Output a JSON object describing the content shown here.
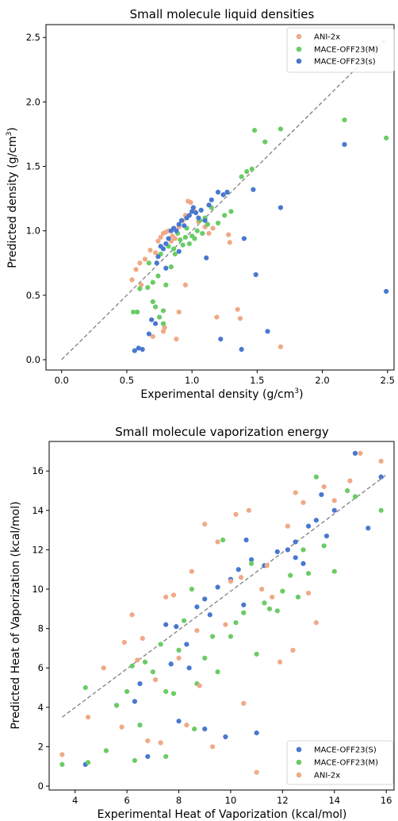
{
  "colors": {
    "ani": "#f0a986",
    "mace_m": "#6acc65",
    "mace_s": "#4878d0",
    "diag": "#808080"
  },
  "chart_data": [
    {
      "type": "scatter",
      "title": "Small molecule liquid densities",
      "xlabel": "Experimental density (g/cm",
      "xlabel_sup": "3",
      "xlabel_end": ")",
      "ylabel": "Predicted density (g/cm",
      "ylabel_sup": "3",
      "ylabel_end": ")",
      "xlim": [
        -0.12,
        2.55
      ],
      "ylim": [
        -0.08,
        2.6
      ],
      "xticks": [
        0.0,
        0.5,
        1.0,
        1.5,
        2.0,
        2.5
      ],
      "yticks": [
        0.0,
        0.5,
        1.0,
        1.5,
        2.0,
        2.5
      ],
      "xtick_labels": [
        "0.0",
        "0.5",
        "1.0",
        "1.5",
        "2.0",
        "2.5"
      ],
      "ytick_labels": [
        "0.0",
        "0.5",
        "1.0",
        "1.5",
        "2.0",
        "2.5"
      ],
      "diagonal": [
        [
          0.0,
          0.0
        ],
        [
          2.5,
          2.5
        ]
      ],
      "legend_position": "top-right",
      "series": [
        {
          "name": "ANI-2x",
          "color_key": "ani",
          "points": [
            [
              0.54,
              0.62
            ],
            [
              0.57,
              0.7
            ],
            [
              0.6,
              0.75
            ],
            [
              0.61,
              0.58
            ],
            [
              0.64,
              0.78
            ],
            [
              0.68,
              0.85
            ],
            [
              0.72,
              0.83
            ],
            [
              0.74,
              0.92
            ],
            [
              0.76,
              0.95
            ],
            [
              0.78,
              0.98
            ],
            [
              0.8,
              0.99
            ],
            [
              0.82,
              1.0
            ],
            [
              0.84,
              0.92
            ],
            [
              0.85,
              0.96
            ],
            [
              0.87,
              0.94
            ],
            [
              0.9,
              1.03
            ],
            [
              0.93,
              1.08
            ],
            [
              0.95,
              1.12
            ],
            [
              0.97,
              1.23
            ],
            [
              0.99,
              1.22
            ],
            [
              1.02,
              1.15
            ],
            [
              1.05,
              1.07
            ],
            [
              1.1,
              1.03
            ],
            [
              1.16,
              1.02
            ],
            [
              1.28,
              0.97
            ],
            [
              0.7,
              0.18
            ],
            [
              0.78,
              0.22
            ],
            [
              0.79,
              0.25
            ],
            [
              0.88,
              0.16
            ],
            [
              0.9,
              0.37
            ],
            [
              0.95,
              0.58
            ],
            [
              1.13,
              0.98
            ],
            [
              1.19,
              0.33
            ],
            [
              1.35,
              0.39
            ],
            [
              1.37,
              0.32
            ],
            [
              1.68,
              0.1
            ],
            [
              1.29,
              0.91
            ]
          ]
        },
        {
          "name": "MACE-OFF23(M)",
          "color_key": "mace_m",
          "points": [
            [
              0.55,
              0.37
            ],
            [
              0.58,
              0.37
            ],
            [
              0.6,
              0.55
            ],
            [
              0.66,
              0.56
            ],
            [
              0.67,
              0.75
            ],
            [
              0.7,
              0.6
            ],
            [
              0.7,
              0.45
            ],
            [
              0.72,
              0.41
            ],
            [
              0.74,
              0.65
            ],
            [
              0.75,
              0.33
            ],
            [
              0.76,
              0.82
            ],
            [
              0.78,
              0.38
            ],
            [
              0.78,
              0.28
            ],
            [
              0.8,
              0.58
            ],
            [
              0.82,
              0.88
            ],
            [
              0.84,
              0.72
            ],
            [
              0.86,
              0.86
            ],
            [
              0.87,
              0.82
            ],
            [
              0.89,
              0.98
            ],
            [
              0.91,
              0.93
            ],
            [
              0.93,
              0.89
            ],
            [
              0.95,
              0.95
            ],
            [
              0.98,
              0.9
            ],
            [
              1.0,
              0.96
            ],
            [
              1.02,
              0.94
            ],
            [
              1.04,
              1.0
            ],
            [
              1.06,
              1.08
            ],
            [
              1.1,
              1.1
            ],
            [
              1.12,
              1.05
            ],
            [
              1.15,
              1.18
            ],
            [
              1.2,
              1.06
            ],
            [
              1.25,
              1.12
            ],
            [
              1.3,
              1.15
            ],
            [
              1.38,
              1.42
            ],
            [
              1.42,
              1.46
            ],
            [
              1.46,
              1.48
            ],
            [
              1.48,
              1.78
            ],
            [
              1.56,
              1.69
            ],
            [
              1.68,
              1.79
            ],
            [
              2.17,
              1.86
            ],
            [
              2.49,
              1.72
            ],
            [
              0.96,
              1.02
            ],
            [
              1.08,
              0.98
            ]
          ]
        },
        {
          "name": "MACE-OFF23(s)",
          "color_key": "mace_s",
          "points": [
            [
              0.56,
              0.07
            ],
            [
              0.59,
              0.09
            ],
            [
              0.62,
              0.08
            ],
            [
              0.67,
              0.2
            ],
            [
              0.69,
              0.31
            ],
            [
              0.72,
              0.28
            ],
            [
              0.74,
              0.8
            ],
            [
              0.76,
              0.88
            ],
            [
              0.78,
              0.86
            ],
            [
              0.8,
              0.9
            ],
            [
              0.82,
              0.94
            ],
            [
              0.84,
              1.0
            ],
            [
              0.86,
              1.02
            ],
            [
              0.88,
              1.0
            ],
            [
              0.9,
              1.05
            ],
            [
              0.92,
              1.08
            ],
            [
              0.94,
              1.04
            ],
            [
              0.96,
              1.1
            ],
            [
              0.98,
              1.12
            ],
            [
              1.0,
              1.15
            ],
            [
              1.01,
              1.18
            ],
            [
              1.03,
              1.14
            ],
            [
              1.05,
              1.1
            ],
            [
              1.07,
              1.16
            ],
            [
              1.1,
              1.08
            ],
            [
              1.13,
              1.2
            ],
            [
              1.15,
              1.24
            ],
            [
              1.2,
              1.3
            ],
            [
              1.24,
              1.28
            ],
            [
              1.27,
              1.3
            ],
            [
              1.22,
              0.16
            ],
            [
              1.38,
              0.08
            ],
            [
              1.4,
              0.94
            ],
            [
              1.47,
              1.32
            ],
            [
              1.49,
              0.66
            ],
            [
              1.58,
              0.22
            ],
            [
              1.68,
              1.18
            ],
            [
              2.17,
              1.67
            ],
            [
              2.49,
              0.53
            ],
            [
              0.8,
              0.71
            ],
            [
              0.9,
              0.84
            ],
            [
              0.73,
              0.75
            ],
            [
              1.11,
              0.79
            ]
          ]
        }
      ]
    },
    {
      "type": "scatter",
      "title": "Small molecule vaporization energy",
      "xlabel": "Experimental Heat of Vaporization (kcal/mol)",
      "ylabel": "Predicted Heat of Vaporization (kcal/mol)",
      "xlim": [
        3.0,
        16.3
      ],
      "ylim": [
        -0.2,
        17.5
      ],
      "xticks": [
        4,
        6,
        8,
        10,
        12,
        14,
        16
      ],
      "yticks": [
        0,
        2,
        4,
        6,
        8,
        10,
        12,
        14,
        16
      ],
      "xtick_labels": [
        "4",
        "6",
        "8",
        "10",
        "12",
        "14",
        "16"
      ],
      "ytick_labels": [
        "0",
        "2",
        "4",
        "6",
        "8",
        "10",
        "12",
        "14",
        "16"
      ],
      "diagonal": [
        [
          3.5,
          3.5
        ],
        [
          16.0,
          15.8
        ]
      ],
      "legend_position": "bottom-right",
      "series": [
        {
          "name": "MACE-OFF23(S)",
          "color_key": "mace_s",
          "points": [
            [
              4.4,
              1.1
            ],
            [
              5.6,
              4.1
            ],
            [
              6.3,
              4.3
            ],
            [
              6.5,
              5.2
            ],
            [
              6.8,
              1.5
            ],
            [
              7.5,
              8.2
            ],
            [
              7.7,
              6.2
            ],
            [
              7.9,
              8.1
            ],
            [
              8.3,
              7.2
            ],
            [
              8.4,
              6.0
            ],
            [
              8.7,
              9.1
            ],
            [
              9.0,
              9.5
            ],
            [
              9.2,
              8.7
            ],
            [
              9.5,
              10.1
            ],
            [
              9.8,
              2.5
            ],
            [
              10.0,
              10.5
            ],
            [
              10.3,
              11.0
            ],
            [
              10.5,
              9.2
            ],
            [
              10.8,
              11.5
            ],
            [
              11.0,
              2.7
            ],
            [
              11.3,
              11.2
            ],
            [
              11.8,
              11.9
            ],
            [
              12.2,
              12.0
            ],
            [
              12.5,
              12.4
            ],
            [
              12.8,
              11.3
            ],
            [
              13.0,
              13.2
            ],
            [
              13.3,
              13.5
            ],
            [
              13.5,
              14.8
            ],
            [
              13.7,
              12.7
            ],
            [
              14.0,
              14.0
            ],
            [
              14.8,
              16.9
            ],
            [
              15.3,
              13.1
            ],
            [
              15.8,
              15.7
            ],
            [
              8.0,
              3.3
            ],
            [
              9.0,
              2.9
            ],
            [
              12.5,
              11.6
            ],
            [
              10.6,
              12.5
            ]
          ]
        },
        {
          "name": "MACE-OFF23(M)",
          "color_key": "mace_m",
          "points": [
            [
              3.5,
              1.1
            ],
            [
              4.4,
              5.0
            ],
            [
              4.5,
              1.2
            ],
            [
              5.2,
              1.8
            ],
            [
              5.6,
              4.1
            ],
            [
              6.0,
              4.8
            ],
            [
              6.2,
              6.1
            ],
            [
              6.5,
              3.1
            ],
            [
              6.7,
              6.3
            ],
            [
              7.0,
              5.8
            ],
            [
              7.3,
              7.2
            ],
            [
              7.5,
              4.8
            ],
            [
              7.8,
              4.7
            ],
            [
              8.0,
              6.9
            ],
            [
              8.2,
              8.4
            ],
            [
              8.5,
              10.0
            ],
            [
              8.7,
              5.2
            ],
            [
              9.0,
              6.5
            ],
            [
              9.3,
              7.6
            ],
            [
              9.5,
              5.8
            ],
            [
              9.7,
              12.5
            ],
            [
              10.0,
              7.6
            ],
            [
              10.2,
              8.3
            ],
            [
              10.5,
              8.8
            ],
            [
              10.8,
              11.3
            ],
            [
              11.0,
              6.7
            ],
            [
              11.3,
              9.3
            ],
            [
              11.5,
              9.0
            ],
            [
              11.8,
              8.9
            ],
            [
              12.0,
              9.9
            ],
            [
              12.3,
              10.7
            ],
            [
              12.6,
              9.6
            ],
            [
              12.8,
              12.0
            ],
            [
              13.0,
              10.8
            ],
            [
              13.3,
              15.7
            ],
            [
              13.6,
              12.2
            ],
            [
              14.0,
              10.9
            ],
            [
              14.5,
              15.0
            ],
            [
              14.8,
              14.7
            ],
            [
              15.8,
              14.0
            ],
            [
              6.3,
              1.3
            ],
            [
              7.5,
              1.5
            ],
            [
              8.6,
              2.9
            ]
          ]
        },
        {
          "name": "ANI-2x",
          "color_key": "ani",
          "points": [
            [
              3.5,
              1.6
            ],
            [
              4.5,
              3.5
            ],
            [
              5.1,
              6.0
            ],
            [
              5.8,
              3.0
            ],
            [
              5.9,
              7.3
            ],
            [
              6.2,
              8.7
            ],
            [
              6.4,
              6.4
            ],
            [
              6.6,
              7.5
            ],
            [
              6.8,
              2.3
            ],
            [
              7.1,
              5.4
            ],
            [
              7.3,
              2.2
            ],
            [
              7.5,
              9.6
            ],
            [
              7.8,
              9.7
            ],
            [
              8.0,
              6.5
            ],
            [
              8.3,
              3.1
            ],
            [
              8.5,
              10.9
            ],
            [
              8.7,
              7.9
            ],
            [
              9.0,
              13.3
            ],
            [
              9.3,
              2.0
            ],
            [
              9.5,
              12.4
            ],
            [
              9.8,
              8.2
            ],
            [
              10.0,
              10.4
            ],
            [
              10.2,
              13.8
            ],
            [
              10.4,
              10.6
            ],
            [
              10.7,
              14.0
            ],
            [
              11.0,
              0.7
            ],
            [
              11.2,
              10.0
            ],
            [
              11.4,
              11.2
            ],
            [
              11.6,
              9.6
            ],
            [
              11.9,
              6.3
            ],
            [
              12.2,
              13.2
            ],
            [
              12.5,
              14.9
            ],
            [
              12.8,
              14.4
            ],
            [
              13.0,
              9.8
            ],
            [
              13.3,
              8.3
            ],
            [
              13.6,
              15.2
            ],
            [
              14.0,
              14.5
            ],
            [
              14.6,
              15.5
            ],
            [
              15.0,
              16.9
            ],
            [
              15.8,
              16.5
            ],
            [
              12.4,
              6.9
            ],
            [
              10.5,
              4.2
            ],
            [
              8.8,
              5.1
            ]
          ]
        }
      ]
    }
  ]
}
